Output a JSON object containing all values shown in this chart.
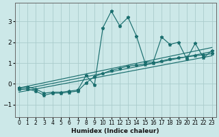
{
  "xlabel": "Humidex (Indice chaleur)",
  "ylabel": "",
  "background_color": "#cce8e8",
  "grid_color": "#aacccc",
  "line_color": "#1a6e6e",
  "xlim": [
    -0.5,
    23.5
  ],
  "ylim": [
    -1.6,
    3.9
  ],
  "yticks": [
    -1,
    0,
    1,
    2,
    3
  ],
  "xticks": [
    0,
    1,
    2,
    3,
    4,
    5,
    6,
    7,
    8,
    9,
    10,
    11,
    12,
    13,
    14,
    15,
    16,
    17,
    18,
    19,
    20,
    21,
    22,
    23
  ],
  "series": [
    {
      "x": [
        0,
        1,
        2,
        3,
        4,
        5,
        6,
        7,
        8,
        9,
        10,
        11,
        12,
        13,
        14,
        15,
        16,
        17,
        18,
        19,
        20,
        21,
        22,
        23
      ],
      "y": [
        -0.2,
        -0.15,
        -0.25,
        -0.45,
        -0.4,
        -0.4,
        -0.35,
        -0.3,
        0.4,
        -0.05,
        2.7,
        3.5,
        2.8,
        3.2,
        2.3,
        1.05,
        1.05,
        2.25,
        1.9,
        2.0,
        1.2,
        1.95,
        1.25,
        1.6
      ]
    },
    {
      "x": [
        0,
        23
      ],
      "y": [
        -0.2,
        1.75
      ]
    },
    {
      "x": [
        0,
        23
      ],
      "y": [
        -0.3,
        1.55
      ]
    },
    {
      "x": [
        0,
        23
      ],
      "y": [
        -0.4,
        1.35
      ]
    },
    {
      "x": [
        0,
        1,
        2,
        3,
        4,
        5,
        6,
        7,
        8,
        9,
        10,
        11,
        12,
        13,
        14,
        15,
        16,
        17,
        18,
        19,
        20,
        21,
        22,
        23
      ],
      "y": [
        -0.25,
        -0.25,
        -0.35,
        -0.55,
        -0.45,
        -0.45,
        -0.4,
        -0.35,
        0.05,
        0.35,
        0.5,
        0.65,
        0.75,
        0.85,
        0.9,
        0.95,
        1.0,
        1.1,
        1.2,
        1.25,
        1.3,
        1.35,
        1.4,
        1.45
      ]
    }
  ]
}
